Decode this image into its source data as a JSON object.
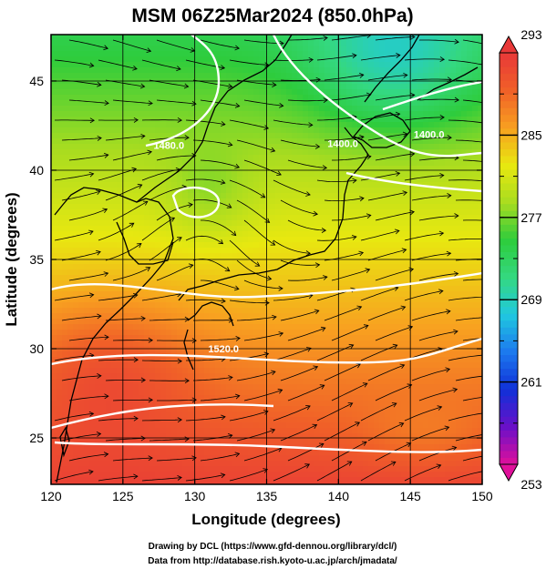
{
  "title": "MSM 06Z25Mar2024 (850.0hPa)",
  "x_axis": {
    "label": "Longitude (degrees)",
    "ticks": [
      "120",
      "125",
      "130",
      "135",
      "140",
      "145",
      "150"
    ],
    "range": [
      120,
      150
    ]
  },
  "y_axis": {
    "label": "Latitude  (degrees)",
    "ticks": [
      "25",
      "30",
      "35",
      "40",
      "45"
    ],
    "range": [
      22.4,
      47.6
    ]
  },
  "colorbar": {
    "ticks": [
      "293",
      "285",
      "277",
      "269",
      "261",
      "253"
    ],
    "range": [
      253,
      293
    ],
    "colors": [
      "#e0109a",
      "#6a10c8",
      "#1030d8",
      "#1c78ee",
      "#20c8e0",
      "#34d880",
      "#2ecc3c",
      "#a8dc20",
      "#e8e810",
      "#f8a020",
      "#f06028",
      "#e83838"
    ]
  },
  "contours": [
    {
      "label": "1480.0",
      "lon": 128.2,
      "lat": 41.2
    },
    {
      "label": "1400.0",
      "lon": 146.3,
      "lat": 41.8
    },
    {
      "label": "1400.0",
      "lon": 140.3,
      "lat": 41.3
    },
    {
      "label": "1520.0",
      "lon": 132.0,
      "lat": 29.8
    }
  ],
  "credits": {
    "line1": "Drawing by DCL (https://www.gfd-dennou.org/library/dcl/)",
    "line2": "Data from http://database.rish.kyoto-u.ac.jp/arch/jmadata/"
  }
}
